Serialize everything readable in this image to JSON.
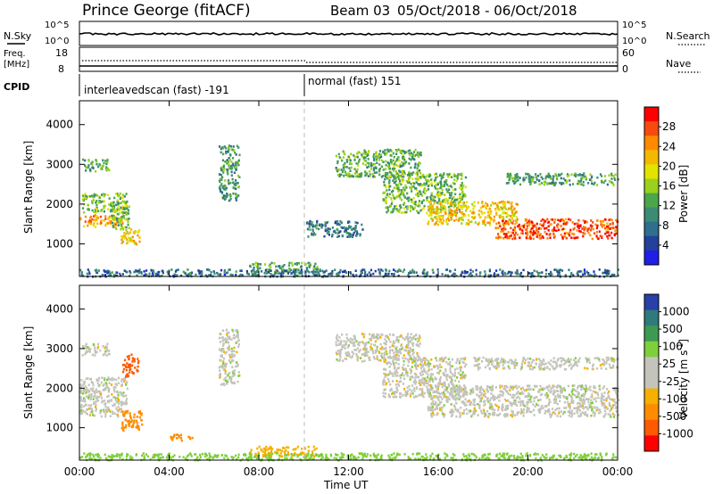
{
  "header": {
    "station": "Prince George (fitACF)",
    "beam": "Beam 03",
    "date_range": "05/Oct/2018 - 06/Oct/2018"
  },
  "panels": {
    "nsky_label": "N.Sky",
    "nsky_ticks": [
      "10^5",
      "10^0"
    ],
    "nsearch_label": "N.Search",
    "nsearch_ticks": [
      "10^5",
      "10^0"
    ],
    "freq_label": "Freq.",
    "freq_unit": "[MHz]",
    "freq_ticks": [
      "18",
      "8"
    ],
    "nave_label": "Nave",
    "nave_ticks": [
      "60",
      "0"
    ],
    "cpid_label": "CPID",
    "cpid_entries": [
      "interleavedscan (fast) -191",
      "normal (fast) 151"
    ]
  },
  "colorbars": {
    "power": {
      "label": "Power [dB]",
      "ticks": [
        "28",
        "24",
        "20",
        "16",
        "12",
        "8",
        "4"
      ],
      "colors": [
        "#ff0000",
        "#f84a0c",
        "#ff8a00",
        "#f5b800",
        "#e3e300",
        "#9ad11c",
        "#4aa64a",
        "#3b8c72",
        "#2f6e8c",
        "#23409a",
        "#1f1fe8"
      ]
    },
    "velocity": {
      "label_main": "Velocity [m s",
      "label_sup": "-1",
      "label_end": "]",
      "ticks": [
        "1000",
        "500",
        "100",
        "25",
        "-25",
        "-100",
        "-500",
        "-1000"
      ],
      "colors": [
        "#2840a8",
        "#2f7a7a",
        "#3e9a52",
        "#7fcf3c",
        "#c4c4bd",
        "#c4c4bd",
        "#f5b000",
        "#ff8c00",
        "#ff5a00",
        "#ff0000"
      ]
    }
  },
  "chart_data": [
    {
      "type": "heatmap",
      "title": "Power",
      "xlabel": "Time UT",
      "ylabel": "Slant Range [km]",
      "x_ticks": [
        "00:00",
        "04:00",
        "08:00",
        "12:00",
        "16:00",
        "20:00",
        "00:00"
      ],
      "y_ticks": [
        "1000",
        "2000",
        "3000",
        "4000"
      ],
      "xlim_hours": [
        0,
        24
      ],
      "ylim_km": [
        180,
        4600
      ],
      "colorbar_range_db": [
        0,
        30
      ],
      "mode_change_hour": 10.0,
      "regions": [
        {
          "t0": 0.0,
          "t1": 1.9,
          "r0": 1450,
          "r1": 1750,
          "dB": 22
        },
        {
          "t0": 0.1,
          "t1": 2.1,
          "r0": 1800,
          "r1": 2300,
          "dB": 14
        },
        {
          "t0": 0.1,
          "t1": 1.3,
          "r0": 2850,
          "r1": 3150,
          "dB": 11
        },
        {
          "t0": 1.8,
          "t1": 2.7,
          "r0": 1000,
          "r1": 1400,
          "dB": 20
        },
        {
          "t0": 1.4,
          "t1": 2.2,
          "r0": 1400,
          "r1": 2100,
          "dB": 13
        },
        {
          "t0": 6.2,
          "t1": 7.1,
          "r0": 2100,
          "r1": 3500,
          "dB": 10
        },
        {
          "t0": 7.5,
          "t1": 10.6,
          "r0": 300,
          "r1": 550,
          "dB": 12
        },
        {
          "t0": 10.1,
          "t1": 12.6,
          "r0": 1200,
          "r1": 1600,
          "dB": 7
        },
        {
          "t0": 11.4,
          "t1": 15.2,
          "r0": 2700,
          "r1": 3400,
          "dB": 12
        },
        {
          "t0": 13.5,
          "t1": 17.2,
          "r0": 1800,
          "r1": 2800,
          "dB": 13
        },
        {
          "t0": 15.5,
          "t1": 19.5,
          "r0": 1500,
          "r1": 2100,
          "dB": 20
        },
        {
          "t0": 18.5,
          "t1": 24.0,
          "r0": 1150,
          "r1": 1650,
          "dB": 27
        },
        {
          "t0": 19.0,
          "t1": 24.0,
          "r0": 2500,
          "r1": 2800,
          "dB": 11
        },
        {
          "t0": 0.0,
          "t1": 24.0,
          "r0": 200,
          "r1": 380,
          "dB": 6
        }
      ]
    },
    {
      "type": "heatmap",
      "title": "Velocity",
      "xlabel": "Time UT",
      "ylabel": "Slant Range [km]",
      "x_ticks": [
        "00:00",
        "04:00",
        "08:00",
        "12:00",
        "16:00",
        "20:00",
        "00:00"
      ],
      "y_ticks": [
        "1000",
        "2000",
        "3000",
        "4000"
      ],
      "xlim_hours": [
        0,
        24
      ],
      "ylim_km": [
        180,
        4600
      ],
      "colorbar_range_ms": [
        -1000,
        1000
      ],
      "regions": [
        {
          "t0": 0.0,
          "t1": 2.1,
          "r0": 1300,
          "r1": 2300,
          "v": 0
        },
        {
          "t0": 0.1,
          "t1": 1.3,
          "r0": 2850,
          "r1": 3150,
          "v": 0
        },
        {
          "t0": 1.8,
          "t1": 2.8,
          "r0": 950,
          "r1": 1450,
          "v": -400
        },
        {
          "t0": 1.9,
          "t1": 2.6,
          "r0": 2300,
          "r1": 2900,
          "v": -600
        },
        {
          "t0": 6.2,
          "t1": 7.1,
          "r0": 2100,
          "r1": 3500,
          "v": 0
        },
        {
          "t0": 4.0,
          "t1": 5.0,
          "r0": 700,
          "r1": 850,
          "v": -300
        },
        {
          "t0": 7.5,
          "t1": 10.6,
          "r0": 300,
          "r1": 550,
          "v": -60
        },
        {
          "t0": 11.4,
          "t1": 15.2,
          "r0": 2700,
          "r1": 3400,
          "v": 0
        },
        {
          "t0": 13.5,
          "t1": 17.2,
          "r0": 1800,
          "r1": 2800,
          "v": 0
        },
        {
          "t0": 15.5,
          "t1": 24.0,
          "r0": 1300,
          "r1": 2100,
          "v": 0
        },
        {
          "t0": 17.5,
          "t1": 24.0,
          "r0": 2500,
          "r1": 2800,
          "v": 0
        },
        {
          "t0": 0.0,
          "t1": 24.0,
          "r0": 200,
          "r1": 380,
          "v": 60
        }
      ]
    }
  ]
}
